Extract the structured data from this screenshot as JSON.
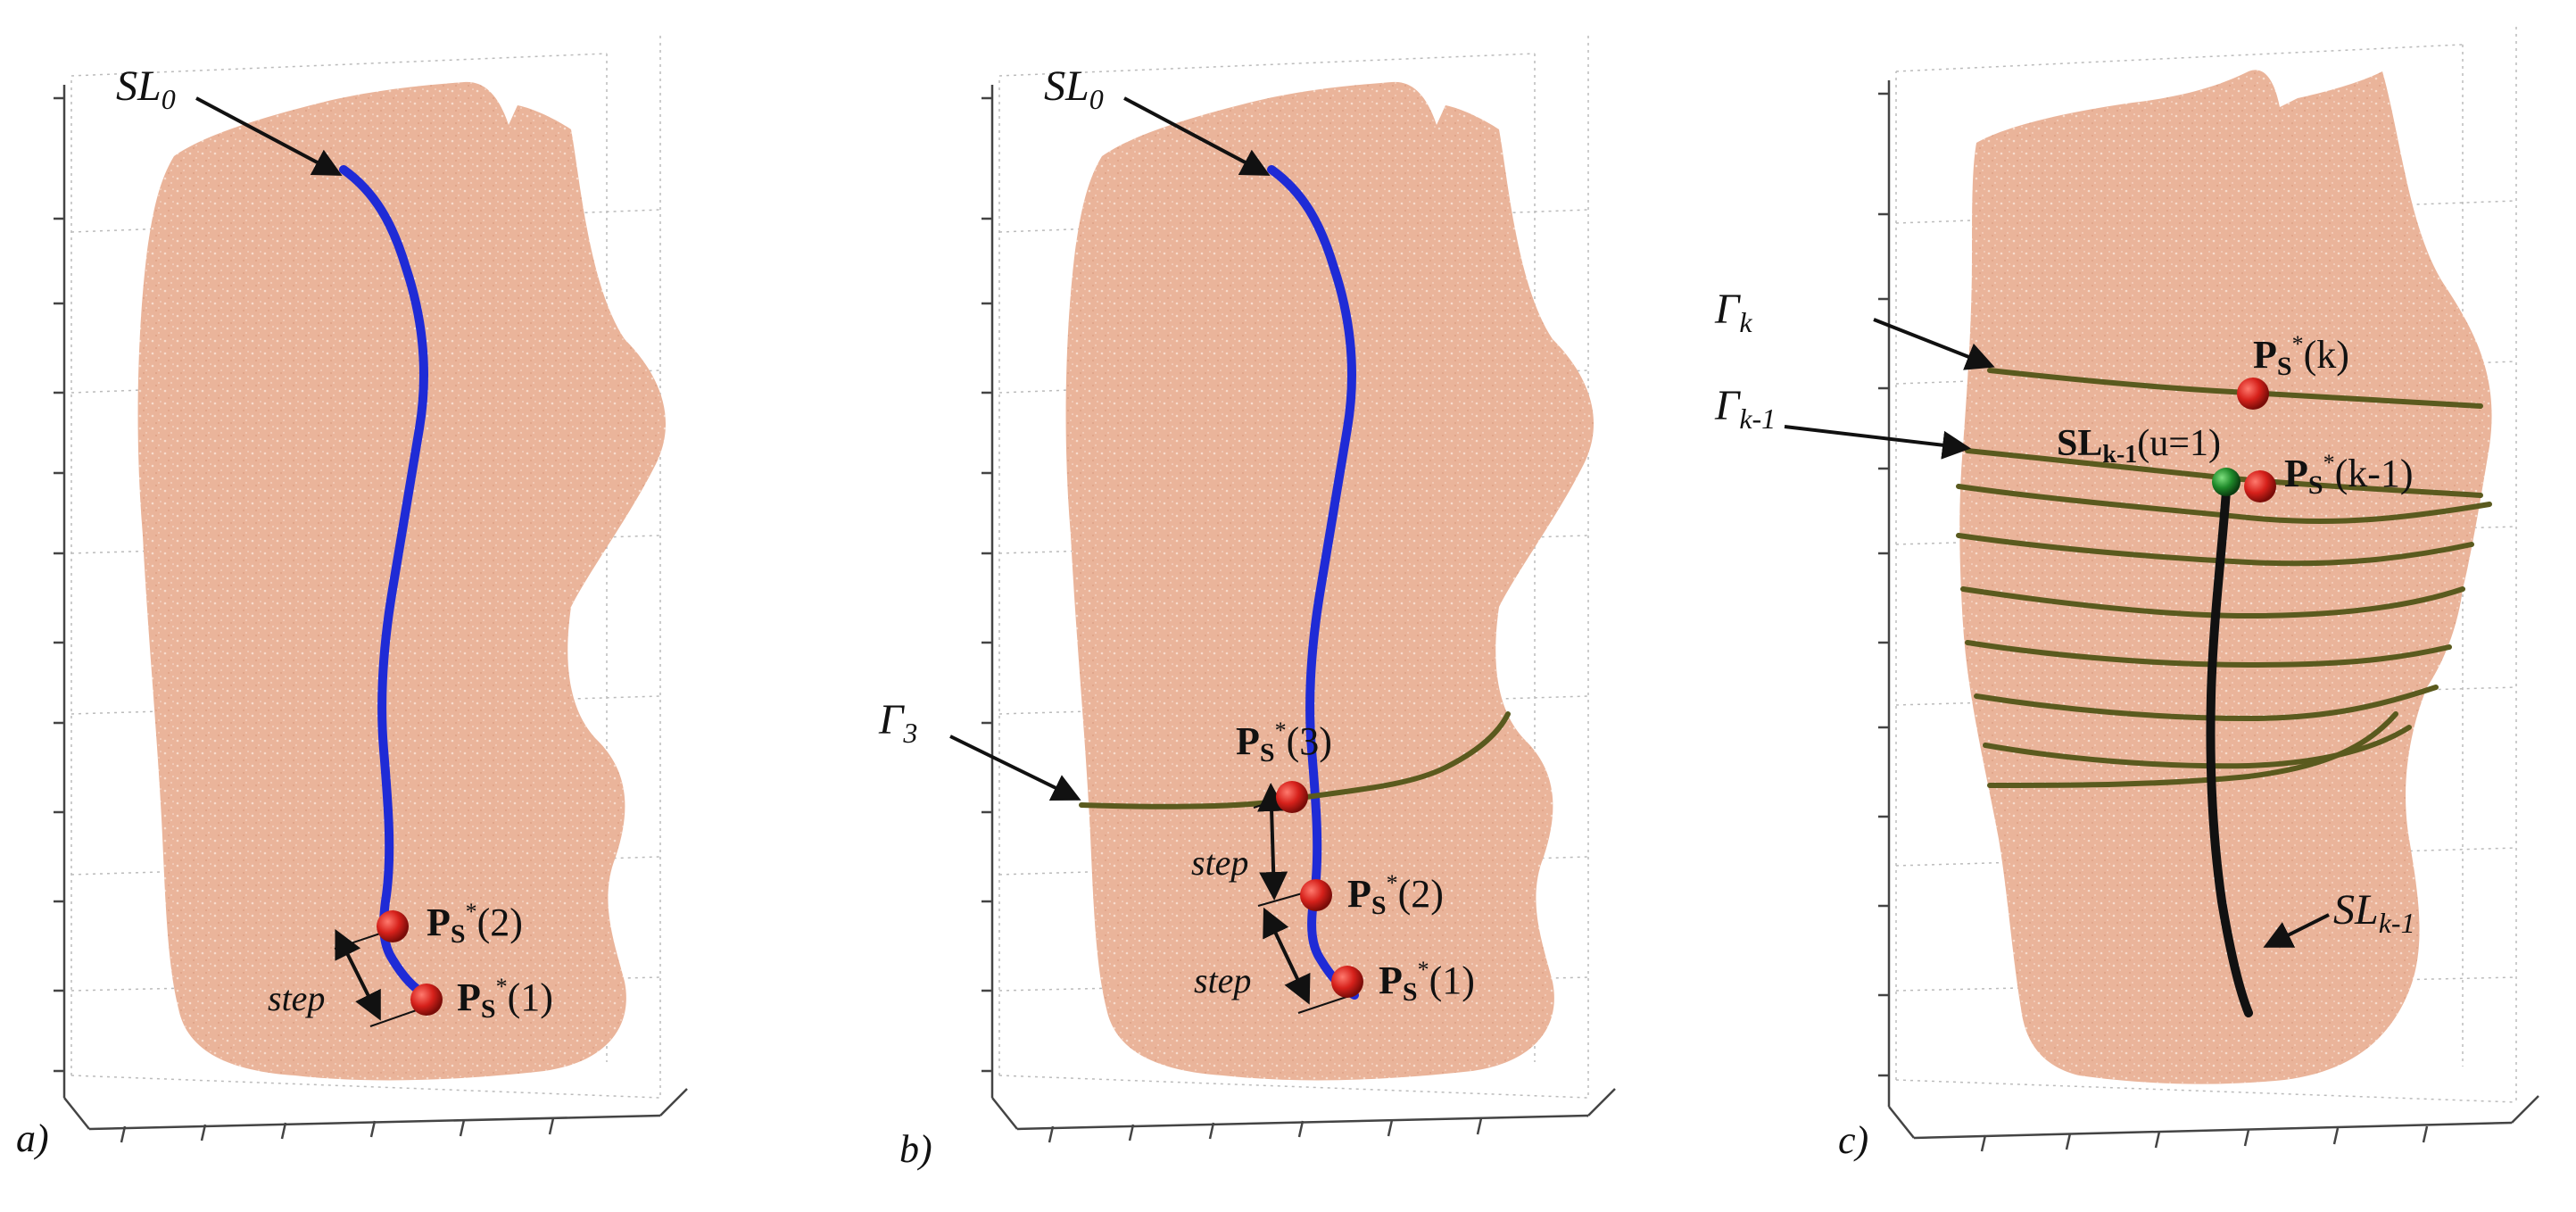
{
  "panels": [
    {
      "id": "a",
      "letter": "a)",
      "sl0": "SL",
      "sl0_sub": "0",
      "ps_letter": "P",
      "ps_sub": "S",
      "ps_star": "*",
      "ps2_arg": "(2)",
      "ps1_arg": "(1)",
      "step": "step"
    },
    {
      "id": "b",
      "letter": "b)",
      "sl0": "SL",
      "sl0_sub": "0",
      "gamma": "Γ",
      "gamma_sub": "3",
      "ps_letter": "P",
      "ps_sub": "S",
      "ps_star": "*",
      "ps3_arg": "(3)",
      "ps2_arg": "(2)",
      "ps1_arg": "(1)",
      "step": "step"
    },
    {
      "id": "c",
      "letter": "c)",
      "gamma": "Γ",
      "gamma_k_sub": "k",
      "gamma_k1_sub": "k-1",
      "ps_letter": "P",
      "ps_sub": "S",
      "ps_star": "*",
      "psk_arg": "(k)",
      "psk1_arg": "(k-1)",
      "sl_bold": "SL",
      "sl_bold_sub": "k-1",
      "sl_bold_arg": "(u=1)",
      "slk1": "SL",
      "slk1_sub": "k-1"
    }
  ],
  "colors": {
    "surface": "#eab49a",
    "surface_speckle": "#f6d8c8",
    "spine": "#1f2bd6",
    "contour": "#5a5a1e",
    "marker_red": "#d6211b",
    "marker_green": "#1f8a2a",
    "curve_black": "#111111",
    "grid": "#b8b8b8",
    "axis": "#444444"
  }
}
